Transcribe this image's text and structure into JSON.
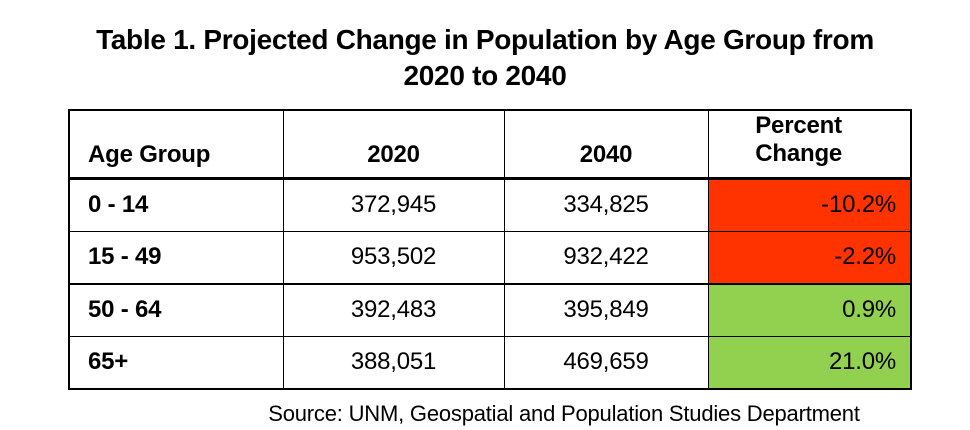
{
  "title": "Table 1. Projected Change in Population by Age Group from 2020 to 2040",
  "source": "Source: UNM, Geospatial and Population Studies Department",
  "colors": {
    "negative_bg": "#ff3300",
    "positive_bg": "#92d050",
    "text": "#000000",
    "background": "#ffffff"
  },
  "table": {
    "columns": [
      "Age Group",
      "2020",
      "2040",
      "Percent Change"
    ],
    "rows": [
      {
        "age_group": "0 - 14",
        "pop_2020": "372,945",
        "pop_2040": "334,825",
        "percent_change": "-10.2%",
        "trend": "negative"
      },
      {
        "age_group": "15 - 49",
        "pop_2020": "953,502",
        "pop_2040": "932,422",
        "percent_change": "-2.2%",
        "trend": "negative"
      },
      {
        "age_group": "50 - 64",
        "pop_2020": "392,483",
        "pop_2040": "395,849",
        "percent_change": "0.9%",
        "trend": "positive"
      },
      {
        "age_group": "65+",
        "pop_2020": "388,051",
        "pop_2040": "469,659",
        "percent_change": "21.0%",
        "trend": "positive"
      }
    ]
  },
  "chart_data": {
    "type": "table",
    "title": "Table 1. Projected Change in Population by Age Group from 2020 to 2040",
    "columns": [
      "Age Group",
      "2020",
      "2040",
      "Percent Change"
    ],
    "rows": [
      [
        "0 - 14",
        372945,
        334825,
        "-10.2%"
      ],
      [
        "15 - 49",
        953502,
        932422,
        "-2.2%"
      ],
      [
        "50 - 64",
        392483,
        395849,
        "0.9%"
      ],
      [
        "65+",
        388051,
        469659,
        "21.0%"
      ]
    ],
    "highlight": {
      "negative_change_rows": [
        0,
        1
      ],
      "positive_change_rows": [
        2,
        3
      ],
      "negative_color": "#ff3300",
      "positive_color": "#92d050"
    },
    "source": "Source: UNM, Geospatial and Population Studies Department"
  }
}
